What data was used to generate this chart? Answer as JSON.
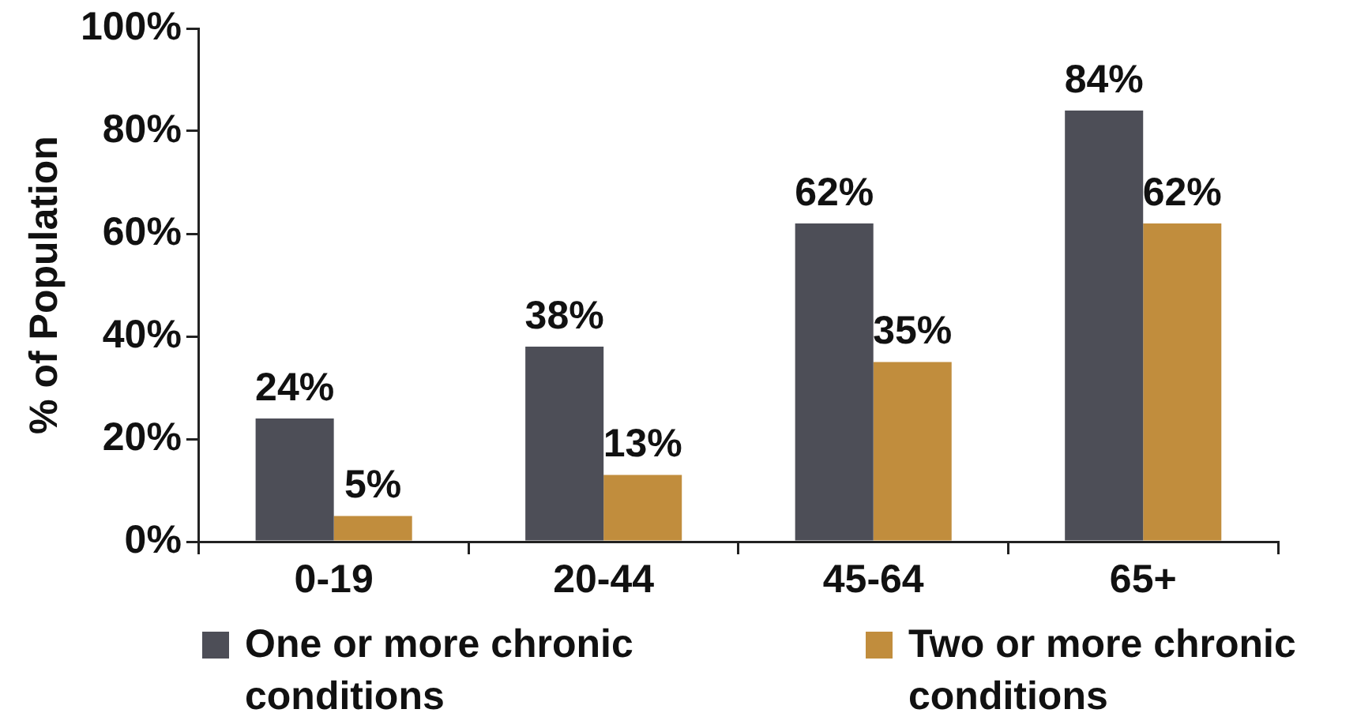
{
  "chart_data": {
    "type": "bar",
    "ylabel": "% of Population",
    "categories": [
      "0-19",
      "20-44",
      "45-64",
      "65+"
    ],
    "series": [
      {
        "name": "One or more chronic conditions",
        "color": "#4d4e57",
        "values": [
          24,
          38,
          62,
          84
        ],
        "value_labels": [
          "24%",
          "38%",
          "62%",
          "84%"
        ]
      },
      {
        "name": "Two or more chronic conditions",
        "color": "#c18d3d",
        "values": [
          5,
          13,
          35,
          62
        ],
        "value_labels": [
          "5%",
          "13%",
          "35%",
          "62%"
        ]
      }
    ],
    "ylim": [
      0,
      100
    ],
    "yticks": [
      {
        "value": 0,
        "label": "0%"
      },
      {
        "value": 20,
        "label": "20%"
      },
      {
        "value": 40,
        "label": "40%"
      },
      {
        "value": 60,
        "label": "60%"
      },
      {
        "value": 80,
        "label": "80%"
      },
      {
        "value": 100,
        "label": "100%"
      }
    ],
    "grid": false,
    "legend": "bottom"
  }
}
